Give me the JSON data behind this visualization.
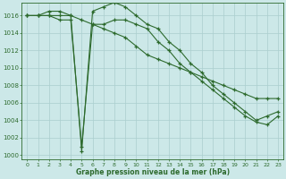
{
  "x": [
    0,
    1,
    2,
    3,
    4,
    5,
    6,
    7,
    8,
    9,
    10,
    11,
    12,
    13,
    14,
    15,
    16,
    17,
    18,
    19,
    20,
    21,
    22,
    23
  ],
  "line1_y": [
    1016.0,
    1016.0,
    1016.5,
    1016.5,
    1016.0,
    1000.5,
    1016.5,
    1017.0,
    1017.5,
    1017.0,
    1016.0,
    1015.0,
    1014.5,
    1013.0,
    1012.0,
    1010.5,
    1009.5,
    1008.0,
    1007.0,
    1006.0,
    1005.0,
    1004.0,
    1004.5,
    1005.0
  ],
  "line2_y": [
    1016.0,
    1016.0,
    1016.0,
    1015.5,
    1015.5,
    1001.0,
    1015.0,
    1015.0,
    1015.5,
    1015.5,
    1015.0,
    1014.5,
    1013.0,
    1012.0,
    1010.5,
    1009.5,
    1008.5,
    1007.5,
    1006.5,
    1005.5,
    1004.5,
    1003.8,
    1003.5,
    1004.5
  ],
  "line3_y": [
    1016.0,
    1016.0,
    1016.0,
    1016.0,
    1016.0,
    1015.5,
    1015.0,
    1014.5,
    1014.0,
    1013.5,
    1012.5,
    1011.5,
    1011.0,
    1010.5,
    1010.0,
    1009.5,
    1009.0,
    1008.5,
    1008.0,
    1007.5,
    1007.0,
    1006.5,
    1006.5,
    1006.5
  ],
  "xlim": [
    -0.5,
    23.5
  ],
  "ylim": [
    999.5,
    1017.5
  ],
  "yticks": [
    1000,
    1002,
    1004,
    1006,
    1008,
    1010,
    1012,
    1014,
    1016
  ],
  "line_color": "#2d6a2d",
  "bg_color": "#cce8e8",
  "grid_color": "#aacece",
  "xlabel": "Graphe pression niveau de la mer (hPa)"
}
